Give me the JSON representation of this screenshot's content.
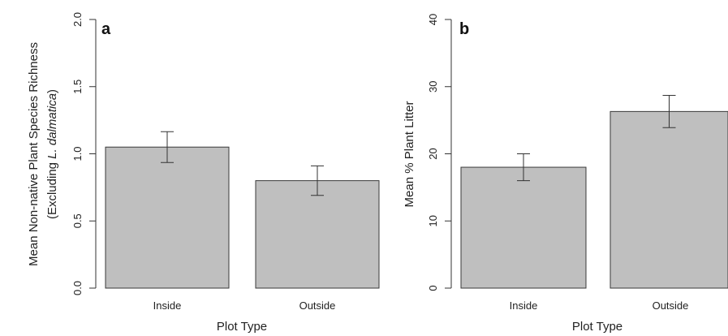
{
  "chart_data": [
    {
      "type": "bar",
      "panel": "a",
      "categories": [
        "Inside",
        "Outside"
      ],
      "values": [
        1.05,
        0.8
      ],
      "error": [
        0.115,
        0.11
      ],
      "xlabel": "Plot Type",
      "ylabel": "Mean Non-native Plant Species Richness",
      "ylabel_line2_prefix": "(Excluding ",
      "ylabel_line2_italic": "L. dalmatica",
      "ylabel_line2_suffix": ")",
      "ylim": [
        0,
        2
      ],
      "yticks": [
        "0.0",
        "0.5",
        "1.0",
        "1.5",
        "2.0"
      ],
      "bar_color": "#bfbfbf",
      "grid": false
    },
    {
      "type": "bar",
      "panel": "b",
      "categories": [
        "Inside",
        "Outside"
      ],
      "values": [
        18.0,
        26.3
      ],
      "error": [
        2.0,
        2.4
      ],
      "xlabel": "Plot Type",
      "ylabel": "Mean % Plant Litter",
      "ylim": [
        0,
        40
      ],
      "yticks": [
        "0",
        "10",
        "20",
        "30",
        "40"
      ],
      "bar_color": "#bfbfbf",
      "grid": false
    }
  ]
}
